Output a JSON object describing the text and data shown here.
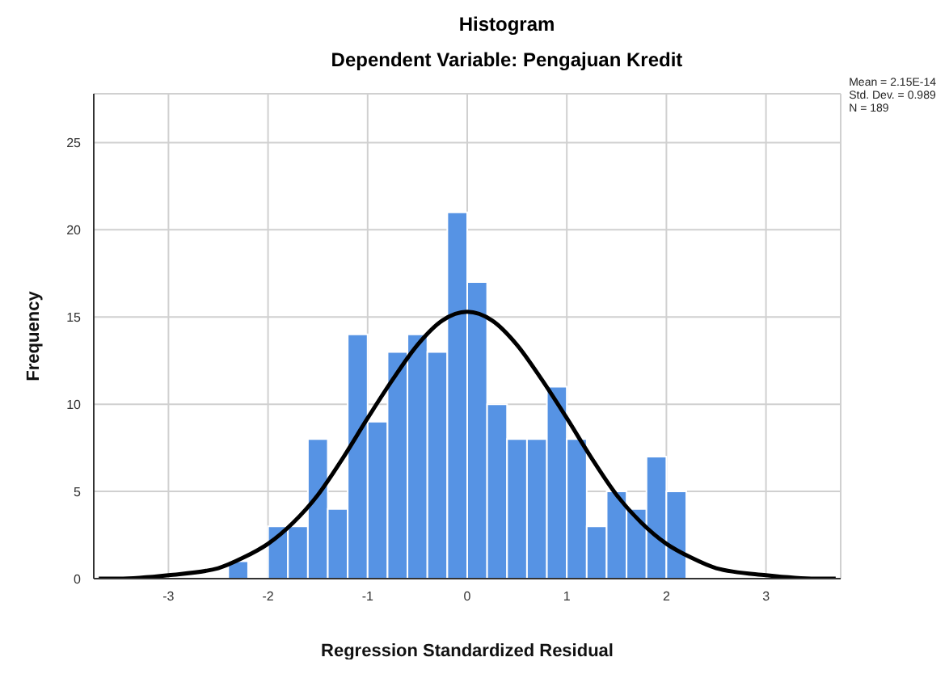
{
  "chart_data": {
    "type": "histogram",
    "title": "Histogram",
    "subtitle": "Dependent Variable: Pengajuan Kredit",
    "xlabel": "Regression Standardized Residual",
    "ylabel": "Frequency",
    "bins": [
      -2.4,
      -2.2,
      -2.0,
      -1.8,
      -1.6,
      -1.4,
      -1.2,
      -1.0,
      -0.8,
      -0.6,
      -0.4,
      -0.2,
      0.0,
      0.2,
      0.4,
      0.6,
      0.8,
      1.0,
      1.2,
      1.4,
      1.6,
      1.8,
      2.0,
      2.2
    ],
    "values": [
      1,
      0,
      3,
      3,
      8,
      4,
      14,
      9,
      13,
      14,
      13,
      21,
      17,
      10,
      8,
      8,
      11,
      8,
      3,
      5,
      4,
      7,
      5
    ],
    "color": "#5693e4",
    "series": [
      {
        "type": "line",
        "color": "#000000",
        "x": [
          -3.7,
          -3.5,
          -3,
          -2.5,
          -2.25,
          -2,
          -1.75,
          -1.5,
          -1.25,
          -1,
          -0.75,
          -0.5,
          -0.25,
          0,
          0.25,
          0.5,
          0.75,
          1,
          1.25,
          1.5,
          1.75,
          2,
          2.25,
          2.5,
          3,
          3.5,
          3.7
        ],
        "values": [
          0,
          0,
          0.2,
          0.6,
          1.2,
          2,
          3.2,
          4.8,
          6.9,
          9.2,
          11.4,
          13.4,
          14.8,
          15.3,
          14.8,
          13.4,
          11.4,
          9.2,
          6.9,
          4.8,
          3.2,
          2,
          1.2,
          0.6,
          0.2,
          0,
          0
        ]
      }
    ],
    "xlim": [
      -3.75,
      3.75
    ],
    "xticks": [
      -3,
      -2,
      -1,
      0,
      1,
      2,
      3
    ],
    "ylim": [
      0,
      27.8
    ],
    "yticks": [
      0,
      5,
      10,
      15,
      20,
      25
    ],
    "grid": true,
    "annotations": [
      "Mean = 2.15E-14",
      "Std. Dev. = 0.989",
      "N = 189"
    ]
  }
}
